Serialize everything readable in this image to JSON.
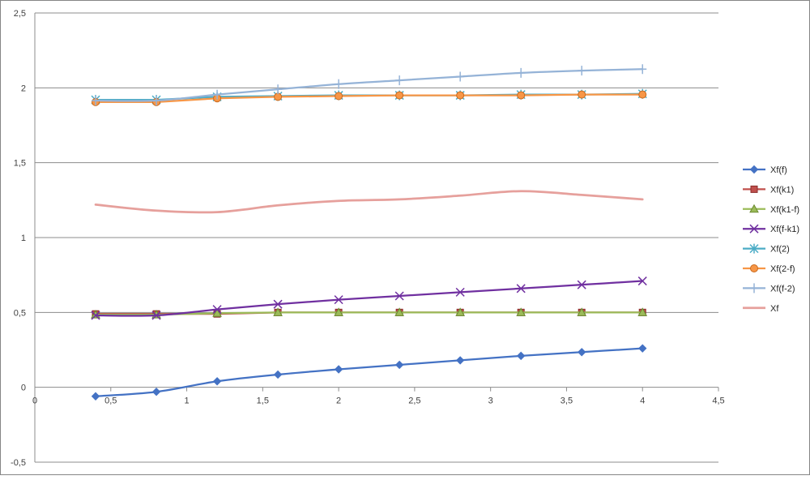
{
  "chart_data": {
    "type": "line",
    "title": "",
    "xlabel": "",
    "ylabel": "",
    "xlim": [
      0,
      4.5
    ],
    "ylim": [
      -0.5,
      2.5
    ],
    "x_ticks": [
      "0",
      "0,5",
      "1",
      "1,5",
      "2",
      "2,5",
      "3",
      "3,5",
      "4",
      "4,5"
    ],
    "y_ticks": [
      "-0,5",
      "0",
      "0,5",
      "1",
      "1,5",
      "2",
      "2,5"
    ],
    "grid": "horizontal major",
    "legend_position": "right",
    "x": [
      0.4,
      0.8,
      1.2,
      1.6,
      2.0,
      2.4,
      2.8,
      3.2,
      3.6,
      4.0
    ],
    "series": [
      {
        "name": "Xf(f)",
        "color": "#4472C4",
        "marker": "diamond",
        "smooth": true,
        "values": [
          -0.06,
          -0.03,
          0.04,
          0.085,
          0.12,
          0.15,
          0.18,
          0.21,
          0.235,
          0.26
        ]
      },
      {
        "name": "Xf(k1)",
        "color": "#C0504D",
        "marker": "square",
        "smooth": false,
        "values": [
          0.49,
          0.49,
          0.49,
          0.5,
          0.5,
          0.5,
          0.5,
          0.5,
          0.5,
          0.5
        ]
      },
      {
        "name": "Xf(k1-f)",
        "color": "#9BBB59",
        "marker": "triangle",
        "smooth": false,
        "values": [
          0.485,
          0.485,
          0.495,
          0.5,
          0.5,
          0.5,
          0.5,
          0.5,
          0.5,
          0.5
        ]
      },
      {
        "name": "Xf(f-k1)",
        "color": "#7030A0",
        "marker": "x",
        "smooth": true,
        "values": [
          0.48,
          0.48,
          0.52,
          0.555,
          0.585,
          0.61,
          0.635,
          0.66,
          0.685,
          0.71
        ]
      },
      {
        "name": "Xf(2)",
        "color": "#4BACC6",
        "marker": "star",
        "smooth": false,
        "values": [
          1.92,
          1.92,
          1.94,
          1.945,
          1.95,
          1.95,
          1.95,
          1.955,
          1.955,
          1.96
        ]
      },
      {
        "name": "Xf(2-f)",
        "color": "#F79646",
        "marker": "circle",
        "smooth": false,
        "values": [
          1.905,
          1.905,
          1.93,
          1.94,
          1.945,
          1.95,
          1.95,
          1.95,
          1.955,
          1.955
        ]
      },
      {
        "name": "Xf(f-2)",
        "color": "#95B3D7",
        "marker": "plus",
        "smooth": true,
        "values": [
          1.915,
          1.915,
          1.955,
          1.99,
          2.025,
          2.05,
          2.075,
          2.1,
          2.115,
          2.125
        ]
      },
      {
        "name": "Xf",
        "color": "#E6A09C",
        "marker": "none",
        "smooth": true,
        "values": [
          1.22,
          1.18,
          1.17,
          1.215,
          1.245,
          1.255,
          1.28,
          1.31,
          1.285,
          1.255
        ]
      }
    ]
  }
}
